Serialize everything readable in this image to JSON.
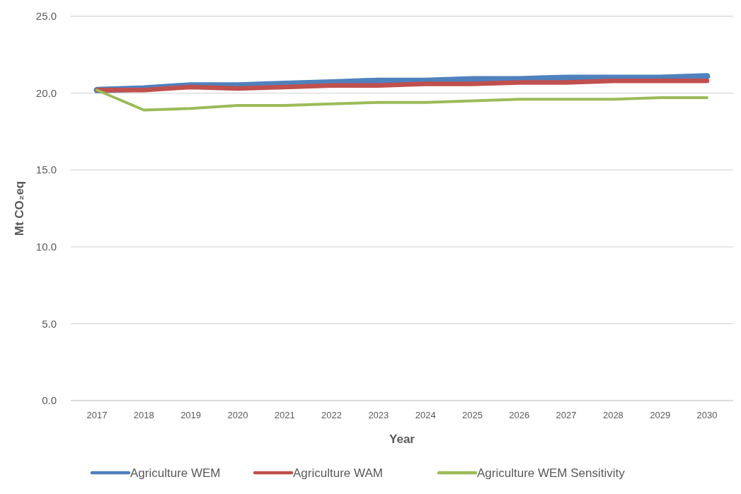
{
  "chart_data": {
    "type": "line",
    "xlabel": "Year",
    "ylabel": "Mt CO₂eq",
    "categories": [
      "2017",
      "2018",
      "2019",
      "2020",
      "2021",
      "2022",
      "2023",
      "2024",
      "2025",
      "2026",
      "2027",
      "2028",
      "2029",
      "2030"
    ],
    "series": [
      {
        "name": "Agriculture WEM",
        "color": "#4f81bd",
        "values": [
          20.2,
          20.3,
          20.5,
          20.5,
          20.6,
          20.7,
          20.8,
          20.8,
          20.9,
          20.9,
          21.0,
          21.0,
          21.0,
          21.1
        ]
      },
      {
        "name": "Agriculture WAM",
        "color": "#c0504d",
        "values": [
          20.2,
          20.2,
          20.4,
          20.3,
          20.4,
          20.5,
          20.5,
          20.6,
          20.6,
          20.7,
          20.7,
          20.8,
          20.8,
          20.8
        ]
      },
      {
        "name": "Agriculture WEM Sensitivity",
        "color": "#9bbb59",
        "values": [
          20.2,
          18.9,
          19.0,
          19.2,
          19.2,
          19.3,
          19.4,
          19.4,
          19.5,
          19.6,
          19.6,
          19.6,
          19.7,
          19.7
        ]
      }
    ],
    "ylim": [
      0,
      25
    ],
    "yticks": [
      {
        "value": 0,
        "label": "0.0"
      },
      {
        "value": 5,
        "label": "5.0"
      },
      {
        "value": 10,
        "label": "10.0"
      },
      {
        "value": 15,
        "label": "15.0"
      },
      {
        "value": 20,
        "label": "20.0"
      },
      {
        "value": 25,
        "label": "25.0"
      }
    ],
    "grid": "y",
    "legend": "bottom",
    "marker": "none",
    "line_style": "solid"
  }
}
